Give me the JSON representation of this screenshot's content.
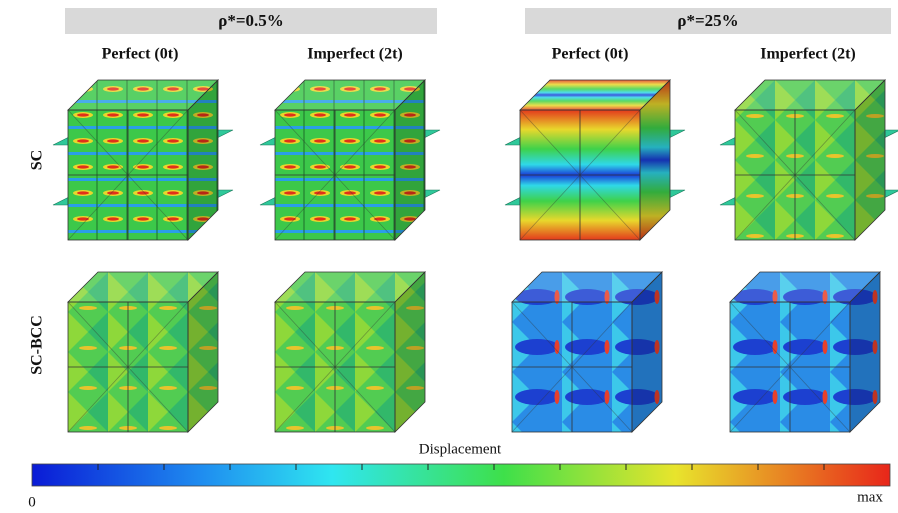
{
  "groups": [
    {
      "title": "ρ*=0.5%",
      "columns": [
        "Perfect (0t)",
        "Imperfect (2t)"
      ]
    },
    {
      "title": "ρ*=25%",
      "columns": [
        "Perfect (0t)",
        "Imperfect (2t)"
      ]
    }
  ],
  "rows": [
    "SC",
    "SC-BCC"
  ],
  "colorbar": {
    "title": "Displacement",
    "min_label": "0",
    "max_label": "max"
  }
}
